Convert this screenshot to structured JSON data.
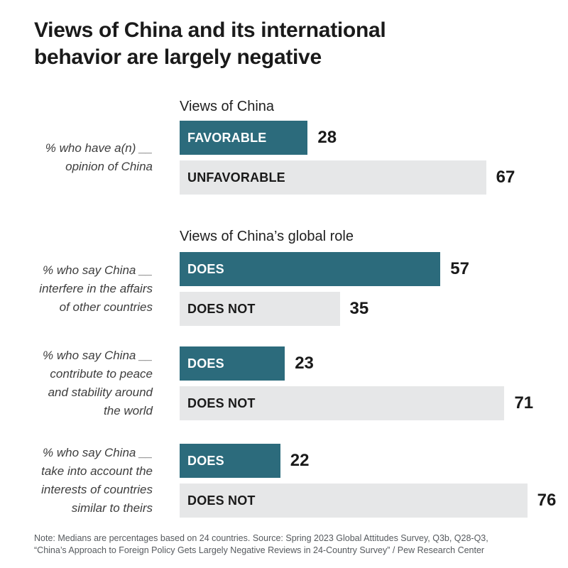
{
  "title": "Views of China and its international\nbehavior are largely negative",
  "colors": {
    "teal_bar": "#2C6B7C",
    "gray_bar": "#E6E7E8",
    "title_text": "#1A1A1A",
    "note_text": "#565A5E"
  },
  "chart": {
    "scale_max": 79,
    "unit": "percent"
  },
  "sections": [
    {
      "heading": "Views of China",
      "side_label": "% who have a(n) __\nopinion of China",
      "bars": [
        {
          "label": "FAVORABLE",
          "value": 28,
          "style": "teal"
        },
        {
          "label": "UNFAVORABLE",
          "value": 67,
          "style": "gray"
        }
      ]
    },
    {
      "heading": "Views of China’s global role",
      "side_label": "% who say China __\ninterfere in the affairs\nof other countries",
      "bars": [
        {
          "label": "DOES",
          "value": 57,
          "style": "teal"
        },
        {
          "label": "DOES NOT",
          "value": 35,
          "style": "gray"
        }
      ]
    },
    {
      "heading": "",
      "side_label": "% who say China __\ncontribute to peace\nand stability around\nthe world",
      "bars": [
        {
          "label": "DOES",
          "value": 23,
          "style": "teal"
        },
        {
          "label": "DOES NOT",
          "value": 71,
          "style": "gray"
        }
      ]
    },
    {
      "heading": "",
      "side_label": "% who say China __\ntake into account the\ninterests of countries\nsimilar to theirs",
      "bars": [
        {
          "label": "DOES",
          "value": 22,
          "style": "teal"
        },
        {
          "label": "DOES NOT",
          "value": 76,
          "style": "gray"
        }
      ]
    }
  ],
  "note": "Note: Medians are percentages based on 24 countries. Source: Spring 2023 Global Attitudes Survey, Q3b, Q28-Q3,\n“China’s Approach to Foreign Policy Gets Largely Negative Reviews in 24-Country Survey” / Pew Research Center",
  "chart_data": {
    "type": "bar",
    "orientation": "horizontal",
    "title": "Views of China and its international behavior are largely negative",
    "unit": "percent (median across 24 countries)",
    "xlim": [
      0,
      79
    ],
    "grid": false,
    "legend": "none",
    "groups": [
      {
        "panel_heading": "Views of China",
        "question": "% who have a(n) __ opinion of China",
        "bars": [
          {
            "category": "FAVORABLE",
            "value": 28,
            "color": "#2C6B7C"
          },
          {
            "category": "UNFAVORABLE",
            "value": 67,
            "color": "#E6E7E8"
          }
        ]
      },
      {
        "panel_heading": "Views of China’s global role",
        "question": "% who say China __ interfere in the affairs of other countries",
        "bars": [
          {
            "category": "DOES",
            "value": 57,
            "color": "#2C6B7C"
          },
          {
            "category": "DOES NOT",
            "value": 35,
            "color": "#E6E7E8"
          }
        ]
      },
      {
        "panel_heading": "",
        "question": "% who say China __ contribute to peace and stability around the world",
        "bars": [
          {
            "category": "DOES",
            "value": 23,
            "color": "#2C6B7C"
          },
          {
            "category": "DOES NOT",
            "value": 71,
            "color": "#E6E7E8"
          }
        ]
      },
      {
        "panel_heading": "",
        "question": "% who say China __ take into account the interests of countries similar to theirs",
        "bars": [
          {
            "category": "DOES",
            "value": 22,
            "color": "#2C6B7C"
          },
          {
            "category": "DOES NOT",
            "value": 76,
            "color": "#E6E7E8"
          }
        ]
      }
    ],
    "note": "Note: Medians are percentages based on 24 countries.",
    "source": "Spring 2023 Global Attitudes Survey, Q3b, Q28-Q3, “China’s Approach to Foreign Policy Gets Largely Negative Reviews in 24-Country Survey” / Pew Research Center"
  }
}
